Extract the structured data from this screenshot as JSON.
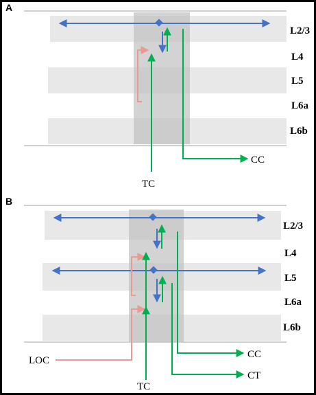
{
  "panels": [
    {
      "label": "A",
      "layers": [
        "L2/3",
        "L4",
        "L5",
        "L6a",
        "L6b"
      ],
      "outputs": [
        "TC",
        "CC"
      ]
    },
    {
      "label": "B",
      "layers": [
        "L2/3",
        "L4",
        "L5",
        "L6a",
        "L6b"
      ],
      "outputs": [
        "LOC",
        "TC",
        "CC",
        "CT"
      ]
    }
  ],
  "colors": {
    "blue": "#4472c4",
    "green": "#00b050",
    "pink": "#e89a95",
    "band": "#e8e8e8",
    "column": "#c0c0c0",
    "rule": "#a0a0a0"
  }
}
